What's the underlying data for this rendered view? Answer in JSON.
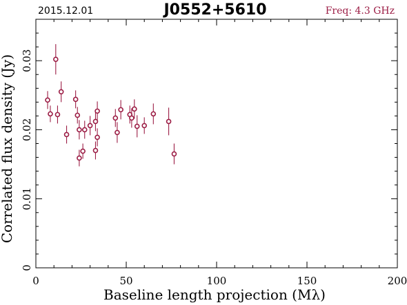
{
  "header": {
    "date": "2015.12.01",
    "source": "J0552+5610",
    "freq": "Freq: 4.3 GHz"
  },
  "colors": {
    "marker": "#9b1c44",
    "axis": "#000000",
    "freq": "#9b1c44"
  },
  "chart_data": {
    "type": "scatter",
    "xlabel": "Baseline length projection (Mλ)",
    "ylabel": "Correlated flux density (Jy)",
    "xlim": [
      0,
      200
    ],
    "ylim": [
      0,
      0.036
    ],
    "x_ticks": [
      0,
      50,
      100,
      150,
      200
    ],
    "x_tick_labels": [
      "0",
      "50",
      "100",
      "150",
      "200"
    ],
    "y_ticks": [
      0,
      0.01,
      0.02,
      0.03
    ],
    "y_tick_labels": [
      "0",
      "0.01",
      "0.02",
      "0.03"
    ],
    "grid": false,
    "error_bars": true,
    "points": [
      {
        "x": 6.5,
        "y": 0.0243,
        "err": 0.0013
      },
      {
        "x": 8.0,
        "y": 0.0223,
        "err": 0.0012
      },
      {
        "x": 11.0,
        "y": 0.0302,
        "err": 0.0022
      },
      {
        "x": 12.0,
        "y": 0.0222,
        "err": 0.0013
      },
      {
        "x": 14.0,
        "y": 0.0255,
        "err": 0.0015
      },
      {
        "x": 17.0,
        "y": 0.0193,
        "err": 0.0013
      },
      {
        "x": 22.0,
        "y": 0.0244,
        "err": 0.0013
      },
      {
        "x": 23.0,
        "y": 0.0221,
        "err": 0.0012
      },
      {
        "x": 24.0,
        "y": 0.02,
        "err": 0.0014
      },
      {
        "x": 24.0,
        "y": 0.0159,
        "err": 0.0012
      },
      {
        "x": 26.0,
        "y": 0.0169,
        "err": 0.0011
      },
      {
        "x": 27.0,
        "y": 0.02,
        "err": 0.0013
      },
      {
        "x": 30.0,
        "y": 0.0206,
        "err": 0.0014
      },
      {
        "x": 33.0,
        "y": 0.017,
        "err": 0.0013
      },
      {
        "x": 33.0,
        "y": 0.0212,
        "err": 0.0014
      },
      {
        "x": 34.0,
        "y": 0.0227,
        "err": 0.0014
      },
      {
        "x": 34.0,
        "y": 0.0189,
        "err": 0.0013
      },
      {
        "x": 44.0,
        "y": 0.0217,
        "err": 0.0013
      },
      {
        "x": 45.0,
        "y": 0.0196,
        "err": 0.0015
      },
      {
        "x": 47.0,
        "y": 0.0229,
        "err": 0.0014
      },
      {
        "x": 52.0,
        "y": 0.0222,
        "err": 0.0013
      },
      {
        "x": 53.0,
        "y": 0.0217,
        "err": 0.0014
      },
      {
        "x": 54.5,
        "y": 0.023,
        "err": 0.0014
      },
      {
        "x": 56.0,
        "y": 0.0205,
        "err": 0.0016
      },
      {
        "x": 60.0,
        "y": 0.0206,
        "err": 0.0012
      },
      {
        "x": 65.0,
        "y": 0.0223,
        "err": 0.0015
      },
      {
        "x": 73.5,
        "y": 0.0212,
        "err": 0.002
      },
      {
        "x": 76.5,
        "y": 0.0165,
        "err": 0.0015
      }
    ]
  }
}
